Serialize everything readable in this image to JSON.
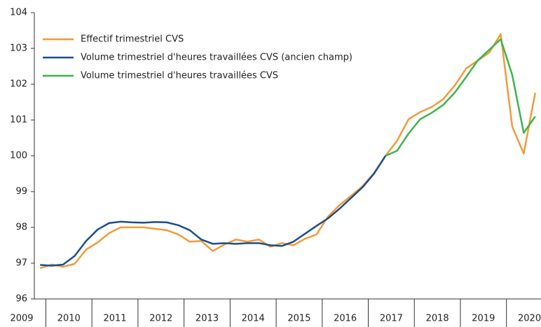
{
  "chart_data": {
    "type": "line",
    "categories": [
      "2009",
      null,
      "2010",
      null,
      null,
      null,
      "2011",
      null,
      null,
      null,
      "2012",
      null,
      null,
      null,
      "2013",
      null,
      null,
      null,
      "2014",
      null,
      null,
      null,
      "2015",
      null,
      null,
      null,
      "2016",
      null,
      null,
      null,
      "2017",
      null,
      null,
      null,
      "2018",
      null,
      null,
      null,
      "2019",
      null,
      null,
      null,
      "2020",
      null
    ],
    "series": [
      {
        "name": "Effectif trimestriel CVS",
        "color": "#f39a3b",
        "values": [
          96.86,
          96.96,
          96.9,
          96.98,
          97.38,
          97.58,
          97.84,
          98.0,
          98.0,
          98.0,
          97.96,
          97.92,
          97.8,
          97.6,
          97.62,
          97.34,
          97.52,
          97.66,
          97.6,
          97.66,
          97.46,
          97.56,
          97.5,
          97.68,
          97.8,
          98.3,
          98.62,
          98.88,
          99.15,
          99.52,
          100.0,
          100.42,
          101.02,
          101.22,
          101.36,
          101.58,
          101.96,
          102.44,
          102.66,
          102.88,
          103.4,
          100.82,
          100.06,
          101.76
        ]
      },
      {
        "name": "Volume trimestriel d'heures travaillées CVS (ancien champ)",
        "color": "#1b4f8c",
        "values": [
          96.95,
          96.93,
          96.96,
          97.2,
          97.62,
          97.94,
          98.12,
          98.16,
          98.14,
          98.13,
          98.15,
          98.14,
          98.06,
          97.92,
          97.66,
          97.54,
          97.56,
          97.54,
          97.56,
          97.56,
          97.5,
          97.48,
          97.6,
          97.82,
          98.04,
          98.25,
          98.52,
          98.82,
          99.12,
          99.5,
          100.0,
          null,
          null,
          null,
          null,
          null,
          null,
          null,
          null,
          null,
          null,
          null,
          null,
          null
        ]
      },
      {
        "name": "Volume trimestriel d'heures travaillées CVS",
        "color": "#3cb54a",
        "values": [
          null,
          null,
          null,
          null,
          null,
          null,
          null,
          null,
          null,
          null,
          null,
          null,
          null,
          null,
          null,
          null,
          null,
          null,
          null,
          null,
          null,
          null,
          null,
          null,
          null,
          null,
          null,
          null,
          null,
          null,
          100.0,
          100.14,
          100.62,
          101.02,
          101.2,
          101.42,
          101.76,
          102.2,
          102.66,
          102.96,
          103.26,
          102.26,
          100.64,
          101.1
        ]
      }
    ],
    "ylim": [
      96,
      104
    ],
    "yticks": [
      96,
      97,
      98,
      99,
      100,
      101,
      102,
      103,
      104
    ],
    "grid": false,
    "legend": "top-left"
  }
}
